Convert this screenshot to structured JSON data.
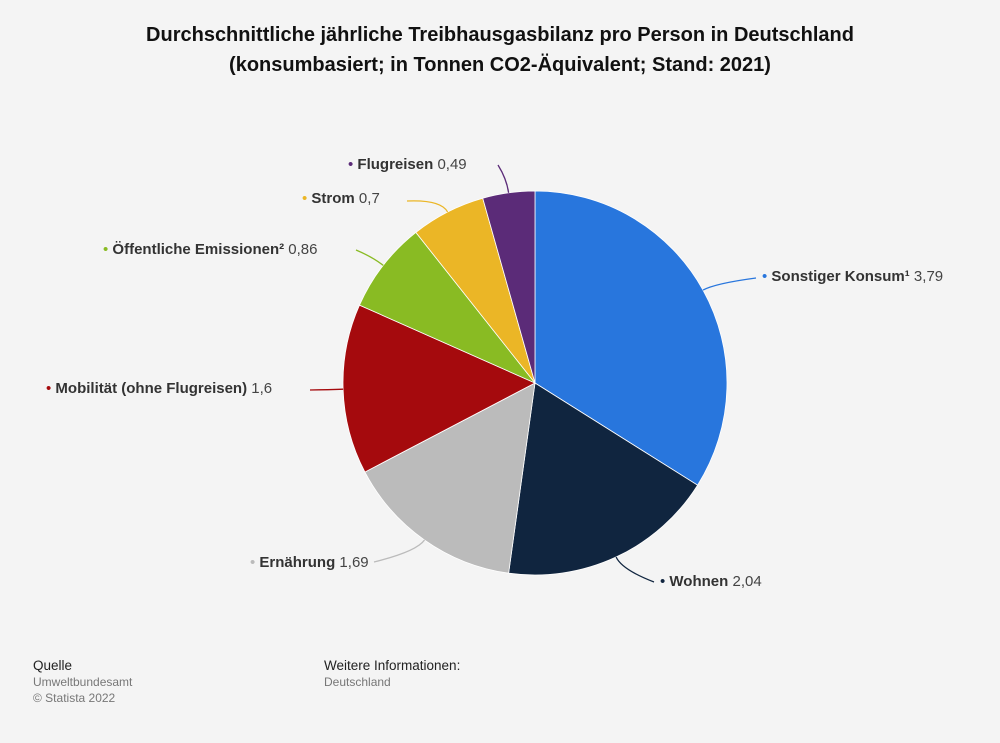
{
  "chart_data": {
    "type": "pie",
    "title": "Durchschnittliche jährliche Treibhausgasbilanz pro Person in Deutschland",
    "subtitle": "(konsumbasiert; in Tonnen CO2-Äquivalent; Stand: 2021)",
    "legend": "none",
    "slices": [
      {
        "label": "Sonstiger Konsum¹",
        "value": 3.79,
        "value_label": "3,79",
        "color": "#2876dd"
      },
      {
        "label": "Wohnen",
        "value": 2.04,
        "value_label": "2,04",
        "color": "#10253f"
      },
      {
        "label": "Ernährung",
        "value": 1.69,
        "value_label": "1,69",
        "color": "#bbbbbb"
      },
      {
        "label": "Mobilität (ohne Flugreisen)",
        "value": 1.6,
        "value_label": "1,6",
        "color": "#a50a0d"
      },
      {
        "label": "Öffentliche Emissionen²",
        "value": 0.86,
        "value_label": "0,86",
        "color": "#89bb23"
      },
      {
        "label": "Strom",
        "value": 0.7,
        "value_label": "0,7",
        "color": "#ebb626"
      },
      {
        "label": "Flugreisen",
        "value": 0.49,
        "value_label": "0,49",
        "color": "#5b2b78"
      }
    ]
  },
  "footer": {
    "source_heading": "Quelle",
    "source_name": "Umweltbundesamt",
    "copyright": "© Statista 2022",
    "info_heading": "Weitere Informationen:",
    "info_value": "Deutschland"
  }
}
